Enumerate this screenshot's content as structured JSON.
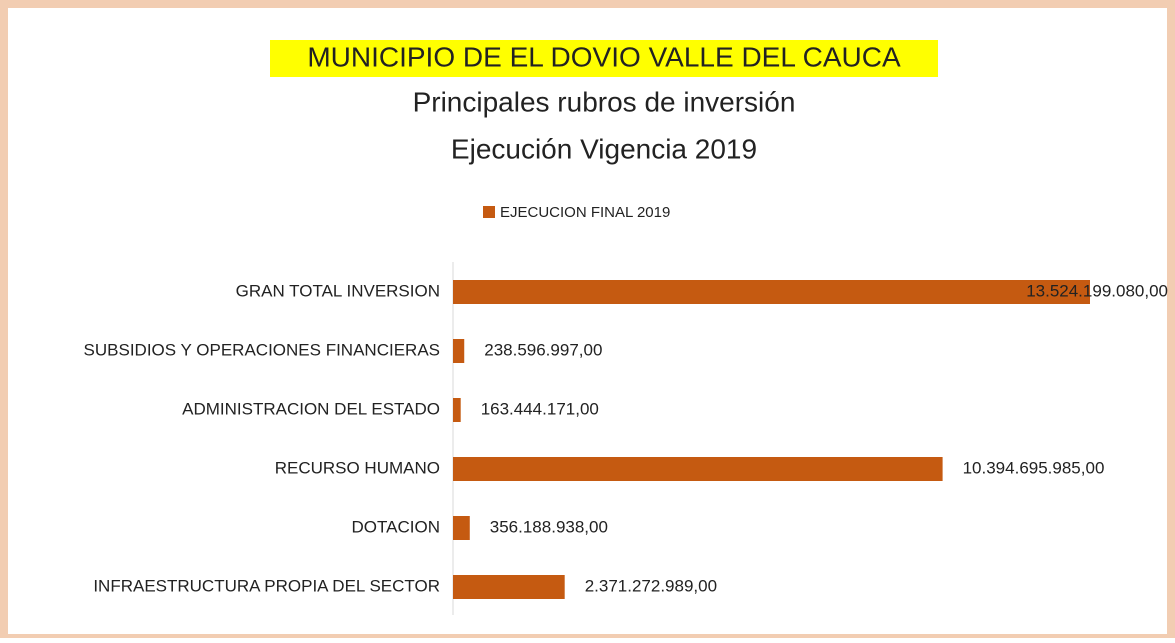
{
  "chart_data": {
    "type": "bar",
    "orientation": "horizontal",
    "title": "MUNICIPIO DE EL DOVIO VALLE DEL CAUCA",
    "subtitles": [
      "Principales rubros de inversión",
      "Ejecución Vigencia 2019"
    ],
    "categories": [
      "GRAN TOTAL INVERSION",
      "SUBSIDIOS Y OPERACIONES FINANCIERAS",
      "ADMINISTRACION DEL ESTADO",
      "RECURSO HUMANO",
      "DOTACION",
      "INFRAESTRUCTURA PROPIA DEL SECTOR"
    ],
    "series": [
      {
        "name": "EJECUCION FINAL 2019",
        "color": "#c55a11",
        "values": [
          13524199080,
          238596997,
          163444171,
          10394695985,
          356188938,
          2371272989
        ],
        "value_labels": [
          "13.524.199.080,00",
          "238.596.997,00",
          "163.444.171,00",
          "10.394.695.985,00",
          "356.188.938,00",
          "2.371.272.989,00"
        ]
      }
    ],
    "legend": "top"
  }
}
